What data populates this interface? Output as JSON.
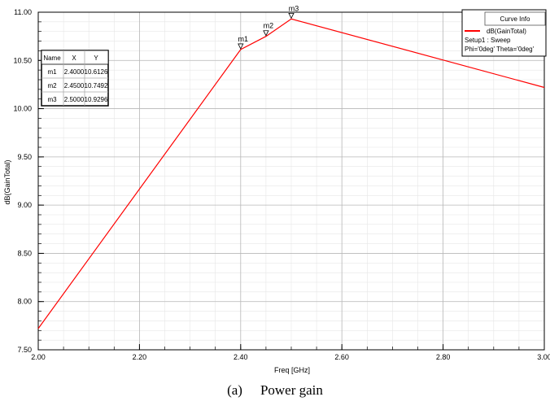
{
  "chart_data": {
    "type": "line",
    "xlabel": "Freq [GHz]",
    "ylabel": "dB(GainTotal)",
    "xlim": [
      2.0,
      3.0
    ],
    "ylim": [
      7.5,
      11.0
    ],
    "xticks": [
      2.0,
      2.2,
      2.4,
      2.6,
      2.8,
      3.0
    ],
    "xtick_labels": [
      "2.00",
      "2.20",
      "2.40",
      "2.60",
      "2.80",
      "3.00"
    ],
    "yticks": [
      7.5,
      8.0,
      8.5,
      9.0,
      9.5,
      10.0,
      10.5,
      11.0
    ],
    "ytick_labels": [
      "7.50",
      "8.00",
      "8.50",
      "9.00",
      "9.50",
      "10.00",
      "10.50",
      "11.00"
    ],
    "grid": true,
    "legend_placement": "top-right",
    "series": [
      {
        "name": "dB(GainTotal)",
        "color": "#ff0000",
        "x": [
          2.0,
          2.4,
          2.45,
          2.5,
          3.0
        ],
        "y": [
          7.72,
          10.6126,
          10.7492,
          10.9296,
          10.22
        ]
      }
    ],
    "markers": [
      {
        "name": "m1",
        "x": 2.4,
        "y": 10.6126
      },
      {
        "name": "m2",
        "x": 2.45,
        "y": 10.7492
      },
      {
        "name": "m3",
        "x": 2.5,
        "y": 10.9296
      }
    ]
  },
  "marker_table": {
    "headers": [
      "Name",
      "X",
      "Y"
    ],
    "rows": [
      [
        "m1",
        "2.4000",
        "10.6126"
      ],
      [
        "m2",
        "2.4500",
        "10.7492"
      ],
      [
        "m3",
        "2.5000",
        "10.9296"
      ]
    ]
  },
  "curve_info": {
    "title": "Curve Info",
    "trace_name": "dB(GainTotal)",
    "setup": "Setup1 : Sweep",
    "params": "Phi='0deg' Theta='0deg'"
  },
  "caption": {
    "tag": "(a)",
    "text": "Power gain"
  }
}
